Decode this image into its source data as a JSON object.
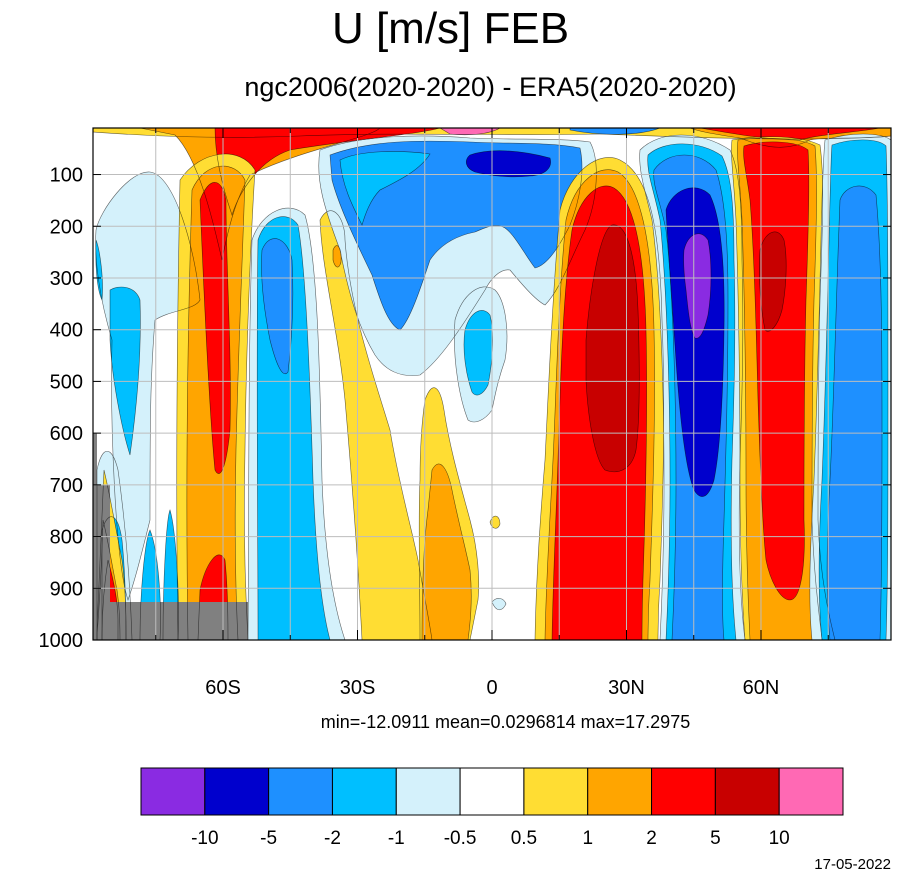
{
  "title": "U [m/s] FEB",
  "subtitle": "ngc2006(2020-2020) - ERA5(2020-2020)",
  "stats": "min=-12.0911   mean=0.0296814   max=17.2975",
  "date": "17-05-2022",
  "chart_data": {
    "type": "heatmap",
    "title": "U [m/s] FEB",
    "subtitle": "ngc2006(2020-2020) - ERA5(2020-2020)",
    "xlabel": "",
    "ylabel": "",
    "x_ticks": [
      {
        "lat": -60,
        "label": "60S"
      },
      {
        "lat": -30,
        "label": "30S"
      },
      {
        "lat": 0,
        "label": "0"
      },
      {
        "lat": 30,
        "label": "30N"
      },
      {
        "lat": 60,
        "label": "60N"
      }
    ],
    "y_ticks": [
      100,
      200,
      300,
      400,
      500,
      600,
      700,
      800,
      900,
      1000
    ],
    "xlim": [
      -89,
      89
    ],
    "ylim": [
      1000,
      10
    ],
    "min": -12.0911,
    "mean": 0.0296814,
    "max": 17.2975,
    "levels": [
      -10,
      -5,
      -2,
      -1,
      -0.5,
      0.5,
      1,
      2,
      5,
      10
    ],
    "colors": [
      "#8a2be2",
      "#0000cd",
      "#1e90ff",
      "#00bfff",
      "#d4f1fb",
      "#ffffff",
      "#ffdd33",
      "#ffa500",
      "#ff0000",
      "#c80000",
      "#ff69b4"
    ],
    "grid": true,
    "missing_color": "#808080"
  }
}
